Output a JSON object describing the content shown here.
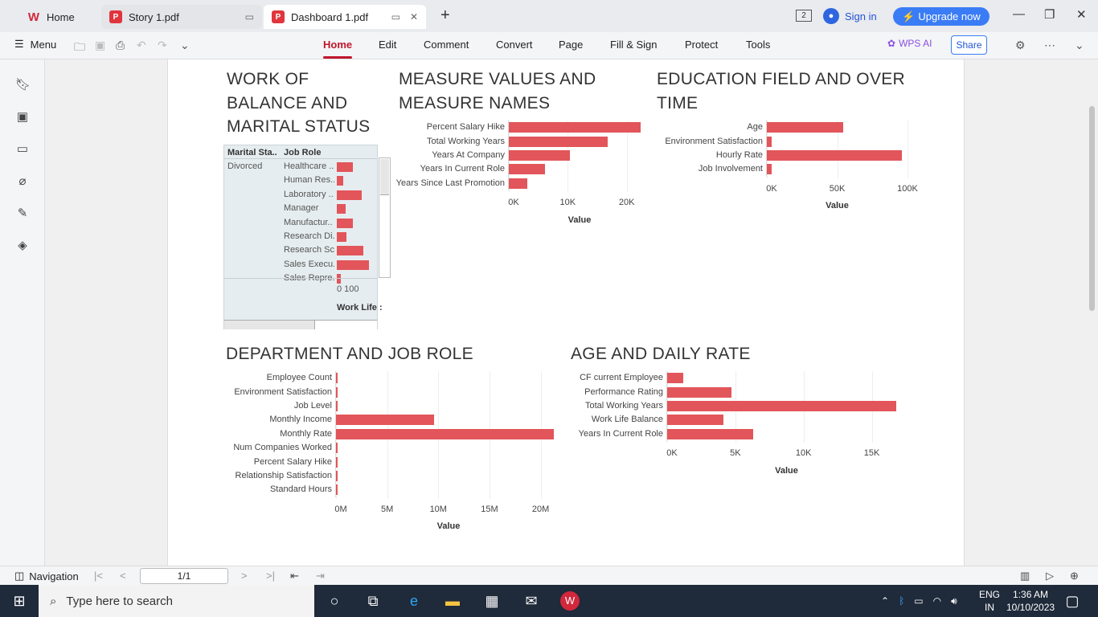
{
  "tabs": {
    "home": "Home",
    "story": "Story 1.pdf",
    "dashboard": "Dashboard 1.pdf"
  },
  "header": {
    "page_badge": "2",
    "sign_in": "Sign in",
    "upgrade": "Upgrade now"
  },
  "toolbar": {
    "menu": "Menu",
    "ribbon": [
      "Home",
      "Edit",
      "Comment",
      "Convert",
      "Page",
      "Fill & Sign",
      "Protect",
      "Tools"
    ],
    "wps_ai": "WPS AI",
    "share": "Share"
  },
  "viz1": {
    "title_l1": "WORK OF",
    "title_l2": "BALANCE AND",
    "title_l3": "MARITAL STATUS",
    "col1": "Marital Sta..",
    "col2": "Job Role",
    "group": "Divorced",
    "rows": [
      {
        "label": "Healthcare ..",
        "value": 45
      },
      {
        "label": "Human Res..",
        "value": 18
      },
      {
        "label": "Laboratory ..",
        "value": 70
      },
      {
        "label": "Manager",
        "value": 25
      },
      {
        "label": "Manufactur..",
        "value": 45
      },
      {
        "label": "Research Di..",
        "value": 28
      },
      {
        "label": "Research Sc..",
        "value": 75
      },
      {
        "label": "Sales Execu..",
        "value": 90
      },
      {
        "label": "Sales Repre..",
        "value": 12
      }
    ],
    "ticks": "0 100",
    "axis": "Work Life :"
  },
  "viz2": {
    "title_l1": "MEASURE VALUES AND",
    "title_l2": "MEASURE NAMES",
    "axis": "Value",
    "ticks": [
      "0K",
      "10K",
      "20K"
    ]
  },
  "viz3": {
    "title_l1": "EDUCATION FIELD AND OVER",
    "title_l2": "TIME",
    "axis": "Value",
    "ticks": [
      "0K",
      "50K",
      "100K"
    ]
  },
  "viz4": {
    "title": "DEPARTMENT AND JOB ROLE",
    "axis": "Value",
    "ticks": [
      "0M",
      "5M",
      "10M",
      "15M",
      "20M"
    ]
  },
  "viz5": {
    "title": "AGE AND DAILY RATE",
    "axis": "Value",
    "ticks": [
      "0K",
      "5K",
      "10K",
      "15K"
    ]
  },
  "chart_data": [
    {
      "type": "bar",
      "title": "MEASURE VALUES AND MEASURE NAMES",
      "xlabel": "Value",
      "categories": [
        "Percent Salary Hike",
        "Total Working Years",
        "Years At Company",
        "Years In Current Role",
        "Years Since Last Promotion"
      ],
      "values": [
        22400,
        16800,
        10300,
        6200,
        3200
      ],
      "xlim": [
        0,
        24000
      ]
    },
    {
      "type": "bar",
      "title": "EDUCATION FIELD AND OVER TIME",
      "xlabel": "Value",
      "categories": [
        "Age",
        "Environment Satisfaction",
        "Hourly Rate",
        "Job Involvement"
      ],
      "values": [
        54000,
        3700,
        96000,
        3700
      ],
      "xlim": [
        0,
        100000
      ]
    },
    {
      "type": "bar",
      "title": "DEPARTMENT AND JOB ROLE",
      "xlabel": "Value",
      "categories": [
        "Employee Count",
        "Environment Satisfaction",
        "Job Level",
        "Monthly Income",
        "Monthly Rate",
        "Num Companies Worked",
        "Percent Salary Hike",
        "Relationship Satisfaction",
        "Standard Hours"
      ],
      "values": [
        50000,
        40000,
        30000,
        9600000,
        21300000,
        40000,
        60000,
        40000,
        120000
      ],
      "xlim": [
        0,
        22000000
      ]
    },
    {
      "type": "bar",
      "title": "AGE AND DAILY RATE",
      "xlabel": "Value",
      "categories": [
        "CF current Employee",
        "Performance Rating",
        "Total Working Years",
        "Work Life Balance",
        "Years In Current Role"
      ],
      "values": [
        1200,
        4700,
        16800,
        4100,
        6300
      ],
      "xlim": [
        0,
        17500
      ]
    }
  ],
  "bottom": {
    "navigation": "Navigation",
    "page": "1/1"
  },
  "taskbar": {
    "search": "Type here to search",
    "lang1": "ENG",
    "lang2": "IN",
    "time": "1:36 AM",
    "date": "10/10/2023"
  },
  "colors": {
    "bar": "#e2555a",
    "accent": "#c0172c",
    "upgrade": "#3a7cf5"
  }
}
